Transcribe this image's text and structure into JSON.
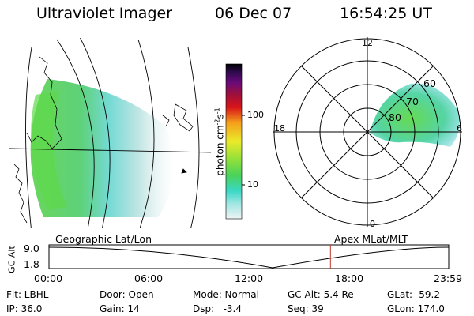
{
  "header": {
    "title": "Ultraviolet Imager",
    "date": "06 Dec 07",
    "time": "16:54:25 UT"
  },
  "colorbar": {
    "label": "photon cm",
    "label_sup1": "-2",
    "label_mid": "s",
    "label_sup2": "-1",
    "ticks": [
      "100",
      "10"
    ]
  },
  "map_left": {
    "caption": "Geographic Lat/Lon"
  },
  "polar_right": {
    "caption": "Apex MLat/MLT",
    "clock_labels": {
      "top": "12",
      "left": "18",
      "right": "6",
      "bottom": "0"
    },
    "lat_labels": [
      "60",
      "70",
      "80"
    ]
  },
  "altitude_plot": {
    "axis_label": "GC Alt",
    "y_ticks": [
      "9.0",
      "1.8"
    ],
    "x_ticks": [
      "00:00",
      "06:00",
      "12:00",
      "18:00",
      "23:59"
    ],
    "current_time_hours": 16.9
  },
  "footer": {
    "row1": {
      "flt": "Flt: LBHL",
      "door": "Door: Open",
      "mode": "Mode: Normal",
      "gcalt": "GC Alt: 5.4 Re",
      "glat": "GLat: -59.2"
    },
    "row2": {
      "ip": "IP: 36.0",
      "gain": "Gain: 14",
      "dsp": "Dsp:   -3.4",
      "seq": "Seq: 39",
      "glon": "GLon: 174.0"
    }
  },
  "colors": {
    "border": "#000000",
    "marker": "#c0392b"
  }
}
